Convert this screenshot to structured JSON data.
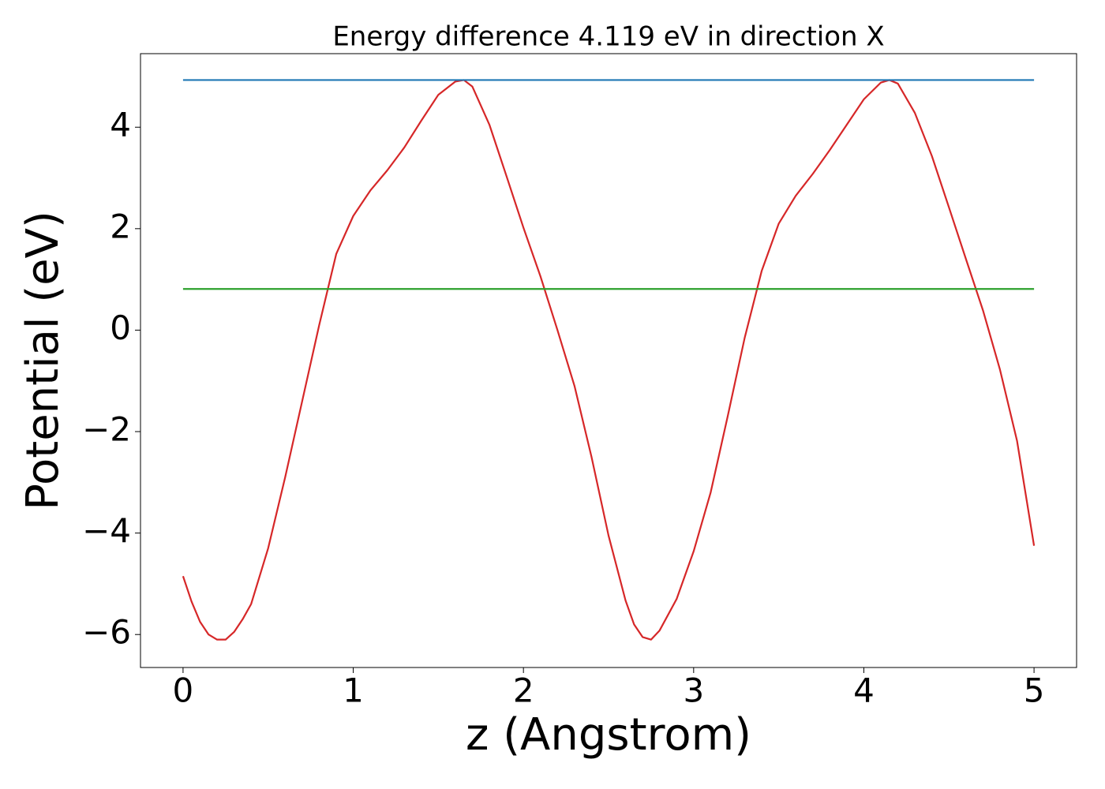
{
  "chart_data": {
    "type": "line",
    "title": "Energy difference 4.119 eV in direction X",
    "xlabel": "z (Angstrom)",
    "ylabel": "Potential (eV)",
    "xlim": [
      -0.25,
      5.25
    ],
    "ylim": [
      -6.65,
      5.45
    ],
    "xticks": [
      0,
      1,
      2,
      3,
      4,
      5
    ],
    "yticks": [
      {
        "value": -6,
        "label": "−6"
      },
      {
        "value": -4,
        "label": "−4"
      },
      {
        "value": -2,
        "label": "−2"
      },
      0,
      2,
      4
    ],
    "grid": false,
    "series": [
      {
        "color": "#d62728",
        "x": [
          0,
          0.05,
          0.1,
          0.15,
          0.2,
          0.25,
          0.3,
          0.35,
          0.4,
          0.5,
          0.6,
          0.7,
          0.8,
          0.9,
          1.0,
          1.1,
          1.2,
          1.3,
          1.4,
          1.5,
          1.6,
          1.65,
          1.7,
          1.8,
          1.9,
          2.0,
          2.1,
          2.2,
          2.3,
          2.4,
          2.5,
          2.6,
          2.65,
          2.7,
          2.75,
          2.8,
          2.9,
          3.0,
          3.1,
          3.2,
          3.3,
          3.4,
          3.5,
          3.6,
          3.7,
          3.8,
          3.9,
          4.0,
          4.1,
          4.15,
          4.2,
          4.3,
          4.4,
          4.5,
          4.6,
          4.7,
          4.8,
          4.9,
          5.0
        ],
        "values": [
          -4.85,
          -5.35,
          -5.75,
          -6.0,
          -6.1,
          -6.1,
          -5.95,
          -5.7,
          -5.4,
          -4.3,
          -2.9,
          -1.4,
          0.1,
          1.5,
          2.25,
          2.75,
          3.15,
          3.6,
          4.13,
          4.64,
          4.9,
          4.93,
          4.8,
          4.05,
          3.04,
          2.02,
          1.06,
          0.0,
          -1.1,
          -2.5,
          -4.05,
          -5.33,
          -5.8,
          -6.05,
          -6.1,
          -5.92,
          -5.3,
          -4.36,
          -3.2,
          -1.7,
          -0.15,
          1.17,
          2.1,
          2.65,
          3.08,
          3.55,
          4.05,
          4.55,
          4.88,
          4.93,
          4.86,
          4.28,
          3.43,
          2.42,
          1.4,
          0.39,
          -0.78,
          -2.18,
          -4.25
        ]
      },
      {
        "color": "#1f77b4",
        "x": [
          0,
          5
        ],
        "values": [
          4.93,
          4.93
        ]
      },
      {
        "color": "#2ca02c",
        "x": [
          0,
          5
        ],
        "values": [
          0.811,
          0.811
        ]
      }
    ]
  }
}
